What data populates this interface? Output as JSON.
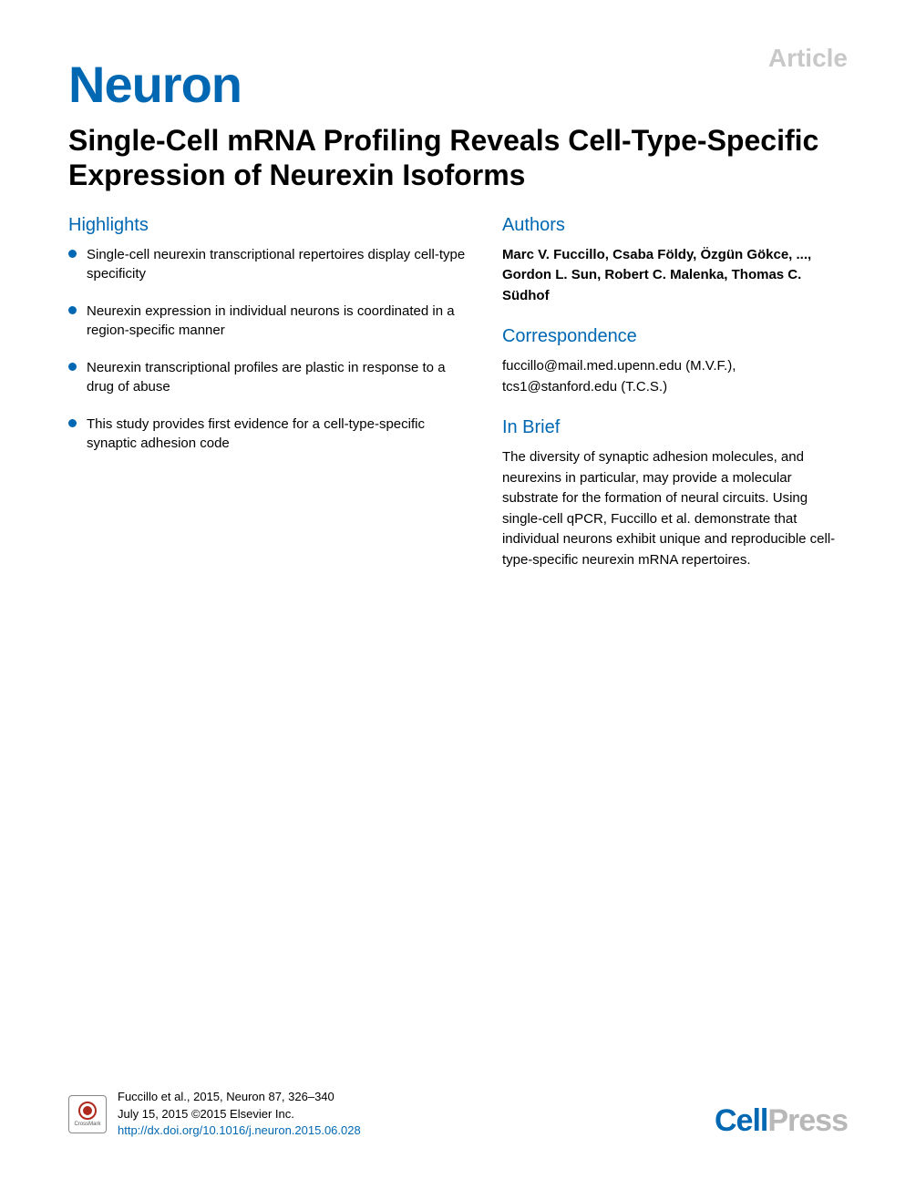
{
  "header": {
    "article_label": "Article",
    "journal": "Neuron"
  },
  "title": "Single-Cell mRNA Profiling Reveals Cell-Type-Specific Expression of Neurexin Isoforms",
  "highlights": {
    "heading": "Highlights",
    "items": [
      "Single-cell neurexin transcriptional repertoires display cell-type specificity",
      "Neurexin expression in individual neurons is coordinated in a region-specific manner",
      "Neurexin transcriptional profiles are plastic in response to a drug of abuse",
      "This study provides first evidence for a cell-type-specific synaptic adhesion code"
    ]
  },
  "authors": {
    "heading": "Authors",
    "text": "Marc V. Fuccillo, Csaba Földy, Özgün Gökce, ..., Gordon L. Sun, Robert C. Malenka, Thomas C. Südhof"
  },
  "correspondence": {
    "heading": "Correspondence",
    "text": "fuccillo@mail.med.upenn.edu (M.V.F.), tcs1@stanford.edu (T.C.S.)"
  },
  "in_brief": {
    "heading": "In Brief",
    "text": "The diversity of synaptic adhesion molecules, and neurexins in particular, may provide a molecular substrate for the formation of neural circuits. Using single-cell qPCR, Fuccillo et al. demonstrate that individual neurons exhibit unique and reproducible cell-type-specific neurexin mRNA repertoires."
  },
  "footer": {
    "crossmark_label": "CrossMark",
    "citation_line1": "Fuccillo et al., 2015, Neuron 87, 326–340",
    "citation_line2": "July 15, 2015 ©2015 Elsevier Inc.",
    "doi": "http://dx.doi.org/10.1016/j.neuron.2015.06.028",
    "publisher_cell": "Cell",
    "publisher_press": "Press"
  },
  "colors": {
    "brand_blue": "#0068b3",
    "light_gray": "#c8c8c8",
    "text_black": "#000000",
    "press_gray": "#b8b8b8"
  }
}
